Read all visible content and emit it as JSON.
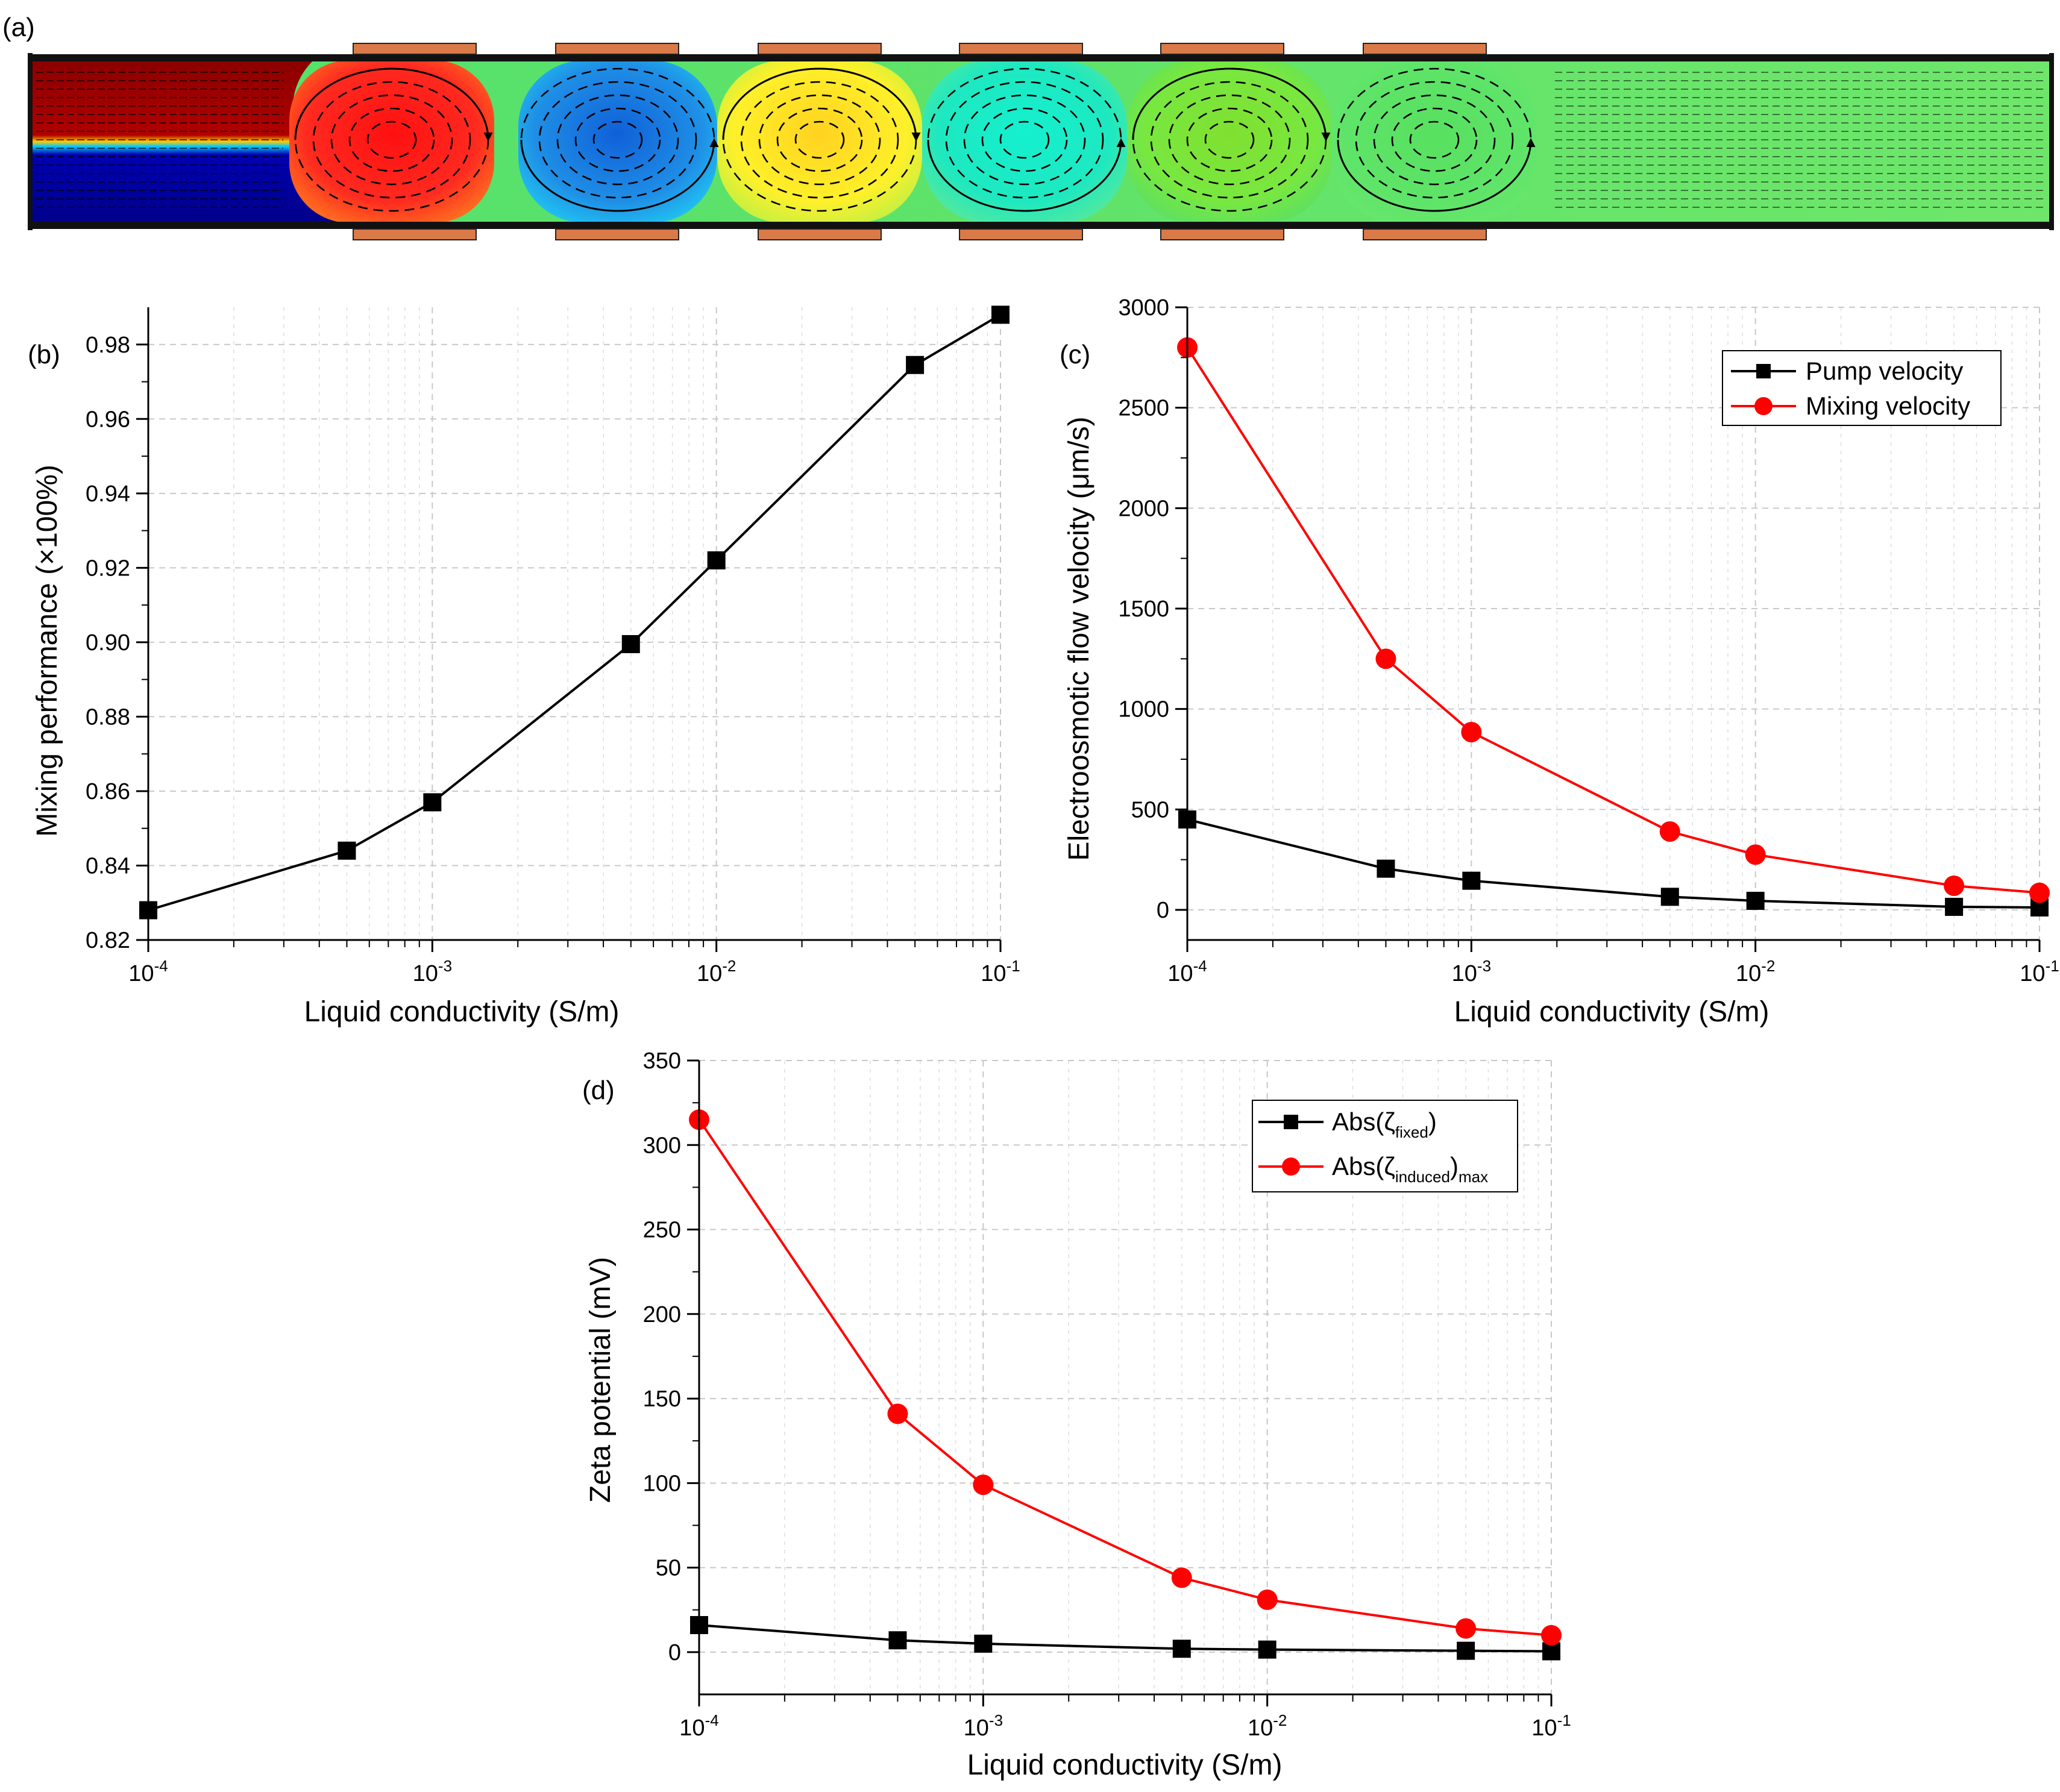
{
  "panel_a": {
    "label": "(a)",
    "inlet_colors": [
      "#8b0000",
      "#00008b"
    ],
    "vortex_colors": [
      "#ff2020",
      "#1f7fe6",
      "#ffe21f",
      "#17e8c8",
      "#7ee83a",
      "#52e06b"
    ],
    "outlet_color": "#6ee66a",
    "electrode_color": "#d97a48"
  },
  "colors": {
    "black_series": "#000000",
    "red_series": "#ff0000"
  },
  "chart_data": [
    {
      "id": "b",
      "type": "line",
      "panel_label": "(b)",
      "xscale": "log",
      "xlim": [
        0.0001,
        0.1
      ],
      "ylim": [
        0.82,
        0.99
      ],
      "xlabel": "Liquid conductivity (S/m)",
      "ylabel": "Mixing performance (×100%)",
      "x_ticks": [
        {
          "value": 0.0001,
          "base": "10",
          "exp": "-4"
        },
        {
          "value": 0.001,
          "base": "10",
          "exp": "-3"
        },
        {
          "value": 0.01,
          "base": "10",
          "exp": "-2"
        },
        {
          "value": 0.1,
          "base": "10",
          "exp": "-1"
        }
      ],
      "y_ticks": [
        {
          "value": 0.82,
          "label": "0.82"
        },
        {
          "value": 0.84,
          "label": "0.84"
        },
        {
          "value": 0.86,
          "label": "0.86"
        },
        {
          "value": 0.88,
          "label": "0.88"
        },
        {
          "value": 0.9,
          "label": "0.90"
        },
        {
          "value": 0.92,
          "label": "0.92"
        },
        {
          "value": 0.94,
          "label": "0.94"
        },
        {
          "value": 0.96,
          "label": "0.96"
        },
        {
          "value": 0.98,
          "label": "0.98"
        }
      ],
      "x": [
        0.0001,
        0.0005,
        0.001,
        0.005,
        0.01,
        0.05,
        0.1
      ],
      "series": [
        {
          "name": "Mixing performance",
          "marker": "square",
          "color": "#000000",
          "values": [
            0.828,
            0.844,
            0.857,
            0.8995,
            0.922,
            0.9745,
            0.988
          ]
        }
      ]
    },
    {
      "id": "c",
      "type": "line",
      "panel_label": "(c)",
      "xscale": "log",
      "xlim": [
        0.0001,
        0.1
      ],
      "ylim": [
        -150,
        3000
      ],
      "xlabel": "Liquid conductivity (S/m)",
      "ylabel": "Electroosmotic flow velocity (μm/s)",
      "x_ticks": [
        {
          "value": 0.0001,
          "base": "10",
          "exp": "-4"
        },
        {
          "value": 0.001,
          "base": "10",
          "exp": "-3"
        },
        {
          "value": 0.01,
          "base": "10",
          "exp": "-2"
        },
        {
          "value": 0.1,
          "base": "10",
          "exp": "-1"
        }
      ],
      "y_ticks": [
        {
          "value": 0,
          "label": "0"
        },
        {
          "value": 500,
          "label": "500"
        },
        {
          "value": 1000,
          "label": "1000"
        },
        {
          "value": 1500,
          "label": "1500"
        },
        {
          "value": 2000,
          "label": "2000"
        },
        {
          "value": 2500,
          "label": "2500"
        },
        {
          "value": 3000,
          "label": "3000"
        }
      ],
      "x": [
        0.0001,
        0.0005,
        0.001,
        0.005,
        0.01,
        0.05,
        0.1
      ],
      "legend": [
        {
          "label": "Pump velocity",
          "marker": "square",
          "color": "#000000"
        },
        {
          "label": "Mixing velocity",
          "marker": "circle",
          "color": "#ff0000"
        }
      ],
      "series": [
        {
          "name": "Pump velocity",
          "marker": "square",
          "color": "#000000",
          "values": [
            450,
            205,
            145,
            65,
            45,
            15,
            12
          ]
        },
        {
          "name": "Mixing velocity",
          "marker": "circle",
          "color": "#ff0000",
          "values": [
            2800,
            1250,
            885,
            390,
            275,
            120,
            85
          ]
        }
      ]
    },
    {
      "id": "d",
      "type": "line",
      "panel_label": "(d)",
      "xscale": "log",
      "xlim": [
        0.0001,
        0.1
      ],
      "ylim": [
        -25,
        350
      ],
      "xlabel": "Liquid conductivity (S/m)",
      "ylabel": "Zeta potential (mV)",
      "x_ticks": [
        {
          "value": 0.0001,
          "base": "10",
          "exp": "-4"
        },
        {
          "value": 0.001,
          "base": "10",
          "exp": "-3"
        },
        {
          "value": 0.01,
          "base": "10",
          "exp": "-2"
        },
        {
          "value": 0.1,
          "base": "10",
          "exp": "-1"
        }
      ],
      "y_ticks": [
        {
          "value": 0,
          "label": "0"
        },
        {
          "value": 50,
          "label": "50"
        },
        {
          "value": 100,
          "label": "100"
        },
        {
          "value": 150,
          "label": "150"
        },
        {
          "value": 200,
          "label": "200"
        },
        {
          "value": 250,
          "label": "250"
        },
        {
          "value": 300,
          "label": "300"
        },
        {
          "value": 350,
          "label": "350"
        }
      ],
      "x": [
        0.0001,
        0.0005,
        0.001,
        0.005,
        0.01,
        0.05,
        0.1
      ],
      "legend": [
        {
          "prefix": "Abs(ζ",
          "sub": "fixed",
          "suffix": ")",
          "sub2": "",
          "marker": "square",
          "color": "#000000"
        },
        {
          "prefix": "Abs(ζ",
          "sub": "induced",
          "suffix": ")",
          "sub2": "max",
          "marker": "circle",
          "color": "#ff0000"
        }
      ],
      "series": [
        {
          "name": "Abs(ζfixed)",
          "marker": "square",
          "color": "#000000",
          "values": [
            16,
            7,
            5,
            2,
            1.5,
            0.8,
            0.5
          ]
        },
        {
          "name": "Abs(ζinduced)max",
          "marker": "circle",
          "color": "#ff0000",
          "values": [
            315,
            141,
            99,
            44,
            31,
            14,
            10
          ]
        }
      ]
    }
  ]
}
